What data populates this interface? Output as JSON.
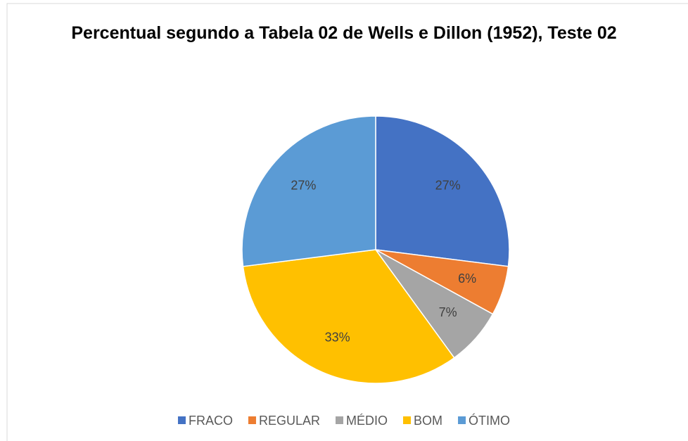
{
  "chart_data": {
    "type": "pie",
    "title": "Percentual segundo a Tabela 02 de Wells e Dillon (1952), Teste 02",
    "categories": [
      "FRACO",
      "REGULAR",
      "MÉDIO",
      "BOM",
      "ÓTIMO"
    ],
    "values": [
      27,
      6,
      7,
      33,
      27
    ],
    "value_labels": [
      "27%",
      "6%",
      "7%",
      "33%",
      "27%"
    ],
    "colors": [
      "#4472c4",
      "#ed7d31",
      "#a5a5a5",
      "#ffc000",
      "#5b9bd5"
    ],
    "legend": "bottom"
  }
}
